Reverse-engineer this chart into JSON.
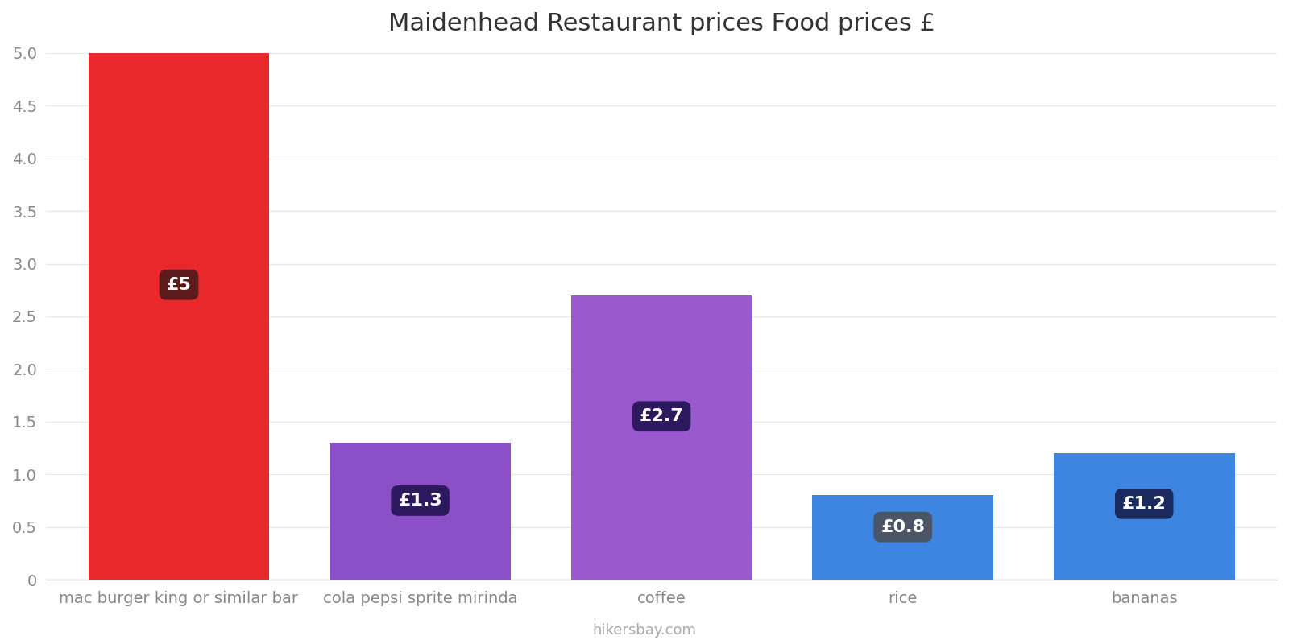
{
  "title": "Maidenhead Restaurant prices Food prices £",
  "categories": [
    "mac burger king or similar bar",
    "cola pepsi sprite mirinda",
    "coffee",
    "rice",
    "bananas"
  ],
  "values": [
    5.0,
    1.3,
    2.7,
    0.8,
    1.2
  ],
  "bar_colors": [
    "#e8282a",
    "#8b4fc8",
    "#9b59d0",
    "#3d85e0",
    "#3d85e0"
  ],
  "label_texts": [
    "£5",
    "£1.3",
    "£2.7",
    "£0.8",
    "£1.2"
  ],
  "label_bg_colors": [
    "#5c1a1a",
    "#2d1a5e",
    "#2d1a5e",
    "#4a5568",
    "#1a2a5e"
  ],
  "label_y_positions": [
    2.8,
    0.75,
    1.55,
    0.5,
    0.72
  ],
  "ylim": [
    0,
    5.0
  ],
  "yticks": [
    0,
    0.5,
    1.0,
    1.5,
    2.0,
    2.5,
    3.0,
    3.5,
    4.0,
    4.5,
    5.0
  ],
  "ytick_labels": [
    "0",
    "0.5",
    "1.0",
    "1.5",
    "2.0",
    "2.5",
    "3.0",
    "3.5",
    "4.0",
    "4.5",
    "5.0"
  ],
  "background_color": "#ffffff",
  "title_fontsize": 22,
  "tick_fontsize": 14,
  "label_fontsize": 16,
  "footer_text": "hikersbay.com",
  "footer_color": "#aaaaaa",
  "bar_width": 0.75
}
